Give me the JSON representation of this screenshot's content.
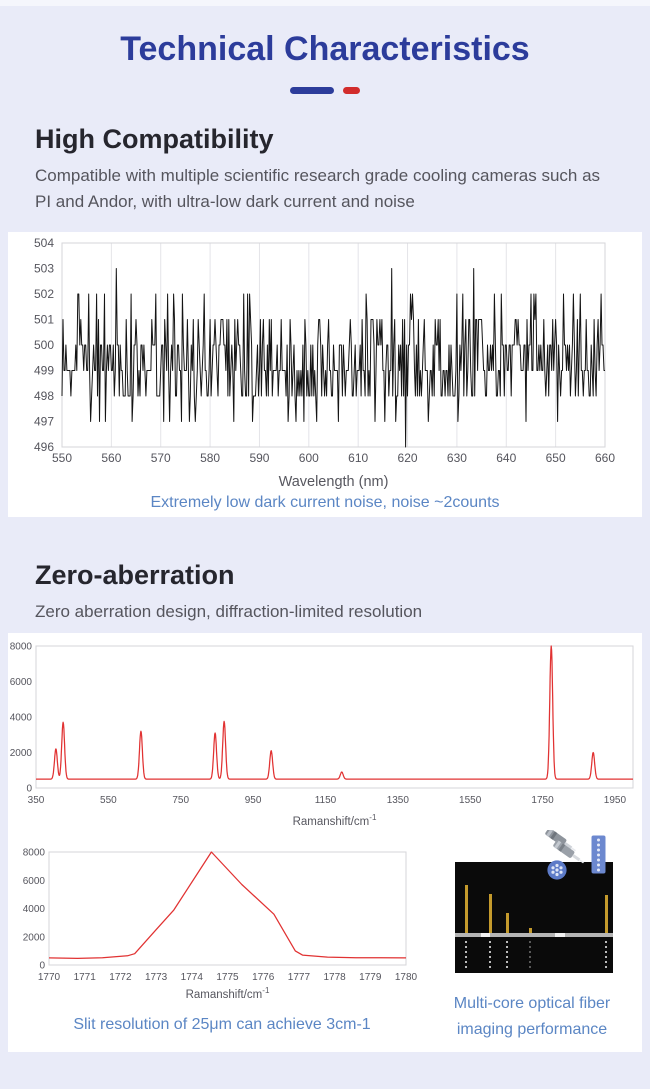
{
  "colors": {
    "accent_blue": "#2c3c9b",
    "accent_red": "#d22c2c",
    "caption_blue": "#5b86c4",
    "page_background": "#e9ebf8",
    "card_background": "#ffffff"
  },
  "header": {
    "title": "Technical Characteristics"
  },
  "sections": {
    "high_compatibility": {
      "heading": "High Compatibility",
      "description": "Compatible with multiple scientific research grade cooling cameras such as PI and Andor, with ultra-low dark current and noise"
    },
    "zero_aberration": {
      "heading": "Zero-aberration",
      "description": "Zero aberration design, diffraction-limited resolution"
    }
  },
  "chart_data": [
    {
      "id": "dark-noise",
      "type": "line",
      "title": "",
      "xlabel": "Wavelength (nm)",
      "ylabel": "",
      "caption": "Extremely low dark current noise, noise ~2counts",
      "xlim": [
        550,
        660
      ],
      "ylim": [
        496,
        504
      ],
      "x_ticks": [
        550,
        560,
        570,
        580,
        590,
        600,
        610,
        620,
        630,
        640,
        650,
        660
      ],
      "y_ticks": [
        496,
        497,
        498,
        499,
        500,
        501,
        502,
        503,
        504
      ],
      "grid": "vertical",
      "legend": "none",
      "line_color": "#141414",
      "noise_model": {
        "description": "dark-current noise trace, integer counts mostly 498-501 with rare spikes",
        "seed": 123456789,
        "points": 551,
        "levels": [
          497,
          498,
          499,
          500,
          501,
          502,
          503
        ],
        "weights": [
          0.035,
          0.21,
          0.29,
          0.27,
          0.13,
          0.05,
          0.015
        ],
        "dip": {
          "x": 619.6,
          "y": 496
        }
      }
    },
    {
      "id": "raman-spectrum",
      "type": "line",
      "title": "",
      "xlabel": "Ramanshift/cm",
      "xlabel_sup": "-1",
      "ylabel": "",
      "xlim": [
        350,
        2000
      ],
      "ylim": [
        0,
        8000
      ],
      "x_ticks": [
        350,
        550,
        750,
        950,
        1150,
        1350,
        1550,
        1750,
        1950
      ],
      "y_ticks": [
        0,
        2000,
        4000,
        6000,
        8000
      ],
      "grid": "none",
      "legend": "none",
      "line_color": "#e13232",
      "baseline": 500,
      "peak_sigma": 4,
      "peaks": [
        {
          "x": 405,
          "y": 2200
        },
        {
          "x": 425,
          "y": 3700
        },
        {
          "x": 640,
          "y": 3200
        },
        {
          "x": 845,
          "y": 3100
        },
        {
          "x": 870,
          "y": 3750
        },
        {
          "x": 1000,
          "y": 2100
        },
        {
          "x": 1195,
          "y": 900
        },
        {
          "x": 1774,
          "y": 8000
        },
        {
          "x": 1890,
          "y": 2000
        }
      ]
    },
    {
      "id": "slit-resolution",
      "type": "line",
      "title": "",
      "xlabel": "Ramanshift/cm",
      "xlabel_sup": "-1",
      "ylabel": "",
      "caption": "Slit resolution of 25μm can achieve 3cm-1",
      "xlim": [
        1770,
        1780
      ],
      "ylim": [
        0,
        8000
      ],
      "x_ticks": [
        1770,
        1771,
        1772,
        1773,
        1774,
        1775,
        1776,
        1777,
        1778,
        1779,
        1780
      ],
      "y_ticks": [
        0,
        2000,
        4000,
        6000,
        8000
      ],
      "grid": "none",
      "legend": "none",
      "line_color": "#e13232",
      "points": [
        [
          1770,
          500
        ],
        [
          1770.8,
          470
        ],
        [
          1771.5,
          520
        ],
        [
          1772.2,
          650
        ],
        [
          1772.4,
          800
        ],
        [
          1773.0,
          2500
        ],
        [
          1773.5,
          3900
        ],
        [
          1774.55,
          8000
        ],
        [
          1775.4,
          5700
        ],
        [
          1776.3,
          3600
        ],
        [
          1776.9,
          1000
        ],
        [
          1777.1,
          700
        ],
        [
          1777.8,
          560
        ],
        [
          1778.6,
          520
        ],
        [
          1780,
          500
        ]
      ]
    }
  ],
  "fiber_figure": {
    "caption_lines": [
      "Multi-core optical fiber",
      "imaging performance"
    ],
    "panel_color": "#0a0a0a",
    "bar_color": "#c49a2c",
    "band_color": "#b5b5b5",
    "icon_color": "#5d7bc8",
    "spectral_bars": [
      {
        "x": 10,
        "h": 48
      },
      {
        "x": 34,
        "h": 39
      },
      {
        "x": 51,
        "h": 20
      },
      {
        "x": 74,
        "h": 5
      },
      {
        "x": 150,
        "h": 38
      }
    ],
    "icons": [
      "fiber-connectors-icon",
      "multicore-fiber-cross-section-icon",
      "linear-fiber-array-icon"
    ]
  }
}
